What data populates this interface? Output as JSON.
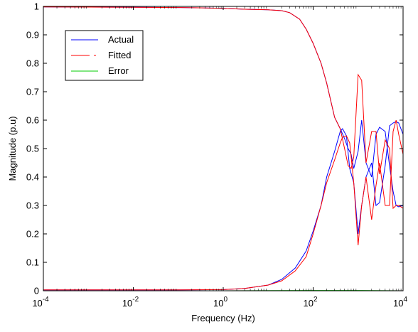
{
  "chart_data": {
    "type": "line",
    "title": "",
    "xlabel": "Frequency (Hz)",
    "ylabel": "Magnitude (p.u)",
    "x_scale": "log",
    "xlim": [
      0.0001,
      10000
    ],
    "ylim": [
      0,
      1
    ],
    "grid": false,
    "legend_position": "top-left",
    "x_ticks": [
      {
        "value": 0.0001,
        "base": "10",
        "exp": "-4"
      },
      {
        "value": 0.01,
        "base": "10",
        "exp": "-2"
      },
      {
        "value": 1,
        "base": "10",
        "exp": "0"
      },
      {
        "value": 100,
        "base": "10",
        "exp": "2"
      },
      {
        "value": 10000,
        "base": "10",
        "exp": "4"
      }
    ],
    "y_ticks": [
      {
        "value": 0,
        "label": "0"
      },
      {
        "value": 0.1,
        "label": "0.1"
      },
      {
        "value": 0.2,
        "label": "0.2"
      },
      {
        "value": 0.3,
        "label": "0.3"
      },
      {
        "value": 0.4,
        "label": "0.4"
      },
      {
        "value": 0.5,
        "label": "0.5"
      },
      {
        "value": 0.6,
        "label": "0.6"
      },
      {
        "value": 0.7,
        "label": "0.7"
      },
      {
        "value": 0.8,
        "label": "0.8"
      },
      {
        "value": 0.9,
        "label": "0.9"
      },
      {
        "value": 1,
        "label": "1"
      }
    ],
    "series": [
      {
        "name": "Actual",
        "color": "#0000ff",
        "curves": [
          [
            [
              0.0001,
              0.998
            ],
            [
              0.01,
              0.997
            ],
            [
              0.1,
              0.996
            ],
            [
              0.3,
              0.995
            ],
            [
              1,
              0.993
            ],
            [
              3,
              0.99
            ],
            [
              10,
              0.988
            ],
            [
              20,
              0.985
            ],
            [
              30,
              0.978
            ],
            [
              50,
              0.955
            ],
            [
              70,
              0.92
            ],
            [
              100,
              0.87
            ],
            [
              150,
              0.8
            ],
            [
              200,
              0.73
            ],
            [
              300,
              0.61
            ],
            [
              400,
              0.57
            ],
            [
              500,
              0.535
            ],
            [
              600,
              0.5
            ],
            [
              700,
              0.48
            ],
            [
              800,
              0.43
            ],
            [
              1000,
              0.49
            ],
            [
              1200,
              0.6
            ],
            [
              1500,
              0.45
            ],
            [
              2000,
              0.4
            ],
            [
              2500,
              0.55
            ],
            [
              3000,
              0.575
            ],
            [
              4000,
              0.56
            ],
            [
              5000,
              0.44
            ],
            [
              6000,
              0.35
            ],
            [
              7000,
              0.3
            ],
            [
              8000,
              0.295
            ],
            [
              10000,
              0.3
            ]
          ],
          [
            [
              0.0001,
              0.003
            ],
            [
              0.1,
              0.003
            ],
            [
              1,
              0.004
            ],
            [
              3,
              0.008
            ],
            [
              10,
              0.02
            ],
            [
              20,
              0.04
            ],
            [
              40,
              0.08
            ],
            [
              70,
              0.14
            ],
            [
              100,
              0.21
            ],
            [
              150,
              0.3
            ],
            [
              200,
              0.4
            ],
            [
              300,
              0.49
            ],
            [
              400,
              0.56
            ],
            [
              450,
              0.57
            ],
            [
              550,
              0.545
            ],
            [
              650,
              0.43
            ],
            [
              800,
              0.38
            ],
            [
              1000,
              0.2
            ],
            [
              1200,
              0.3
            ],
            [
              1500,
              0.4
            ],
            [
              2000,
              0.45
            ],
            [
              2500,
              0.3
            ],
            [
              3000,
              0.31
            ],
            [
              4000,
              0.44
            ],
            [
              5000,
              0.58
            ],
            [
              6000,
              0.59
            ],
            [
              7000,
              0.595
            ],
            [
              8000,
              0.59
            ],
            [
              10000,
              0.55
            ]
          ]
        ]
      },
      {
        "name": "Fitted",
        "color": "#ff0000",
        "curves": [
          [
            [
              0.0001,
              0.998
            ],
            [
              0.01,
              0.997
            ],
            [
              0.1,
              0.996
            ],
            [
              0.3,
              0.995
            ],
            [
              1,
              0.993
            ],
            [
              3,
              0.99
            ],
            [
              10,
              0.988
            ],
            [
              20,
              0.985
            ],
            [
              30,
              0.978
            ],
            [
              50,
              0.955
            ],
            [
              70,
              0.92
            ],
            [
              100,
              0.87
            ],
            [
              150,
              0.8
            ],
            [
              200,
              0.73
            ],
            [
              300,
              0.61
            ],
            [
              400,
              0.57
            ],
            [
              500,
              0.5
            ],
            [
              600,
              0.44
            ],
            [
              700,
              0.43
            ],
            [
              800,
              0.47
            ],
            [
              1000,
              0.76
            ],
            [
              1200,
              0.74
            ],
            [
              1500,
              0.45
            ],
            [
              2000,
              0.56
            ],
            [
              2500,
              0.56
            ],
            [
              3000,
              0.41
            ],
            [
              4000,
              0.53
            ],
            [
              5000,
              0.5
            ],
            [
              6000,
              0.29
            ],
            [
              7000,
              0.3
            ],
            [
              8000,
              0.3
            ],
            [
              10000,
              0.29
            ]
          ],
          [
            [
              0.0001,
              0.003
            ],
            [
              0.1,
              0.003
            ],
            [
              1,
              0.004
            ],
            [
              3,
              0.008
            ],
            [
              10,
              0.02
            ],
            [
              20,
              0.035
            ],
            [
              40,
              0.07
            ],
            [
              70,
              0.12
            ],
            [
              100,
              0.2
            ],
            [
              150,
              0.3
            ],
            [
              200,
              0.38
            ],
            [
              300,
              0.46
            ],
            [
              400,
              0.52
            ],
            [
              450,
              0.54
            ],
            [
              550,
              0.545
            ],
            [
              650,
              0.52
            ],
            [
              800,
              0.38
            ],
            [
              1000,
              0.16
            ],
            [
              1200,
              0.3
            ],
            [
              1500,
              0.4
            ],
            [
              2000,
              0.25
            ],
            [
              2500,
              0.37
            ],
            [
              3000,
              0.45
            ],
            [
              4000,
              0.3
            ],
            [
              5000,
              0.3
            ],
            [
              6000,
              0.56
            ],
            [
              7000,
              0.6
            ],
            [
              8000,
              0.55
            ],
            [
              10000,
              0.48
            ]
          ]
        ]
      },
      {
        "name": "Error",
        "color": "#00cc00",
        "curves": [
          [
            [
              0.0001,
              0.0
            ],
            [
              1,
              0.0
            ],
            [
              100,
              0.001
            ],
            [
              1000,
              0.001
            ],
            [
              10000,
              0.0
            ]
          ]
        ]
      }
    ]
  }
}
